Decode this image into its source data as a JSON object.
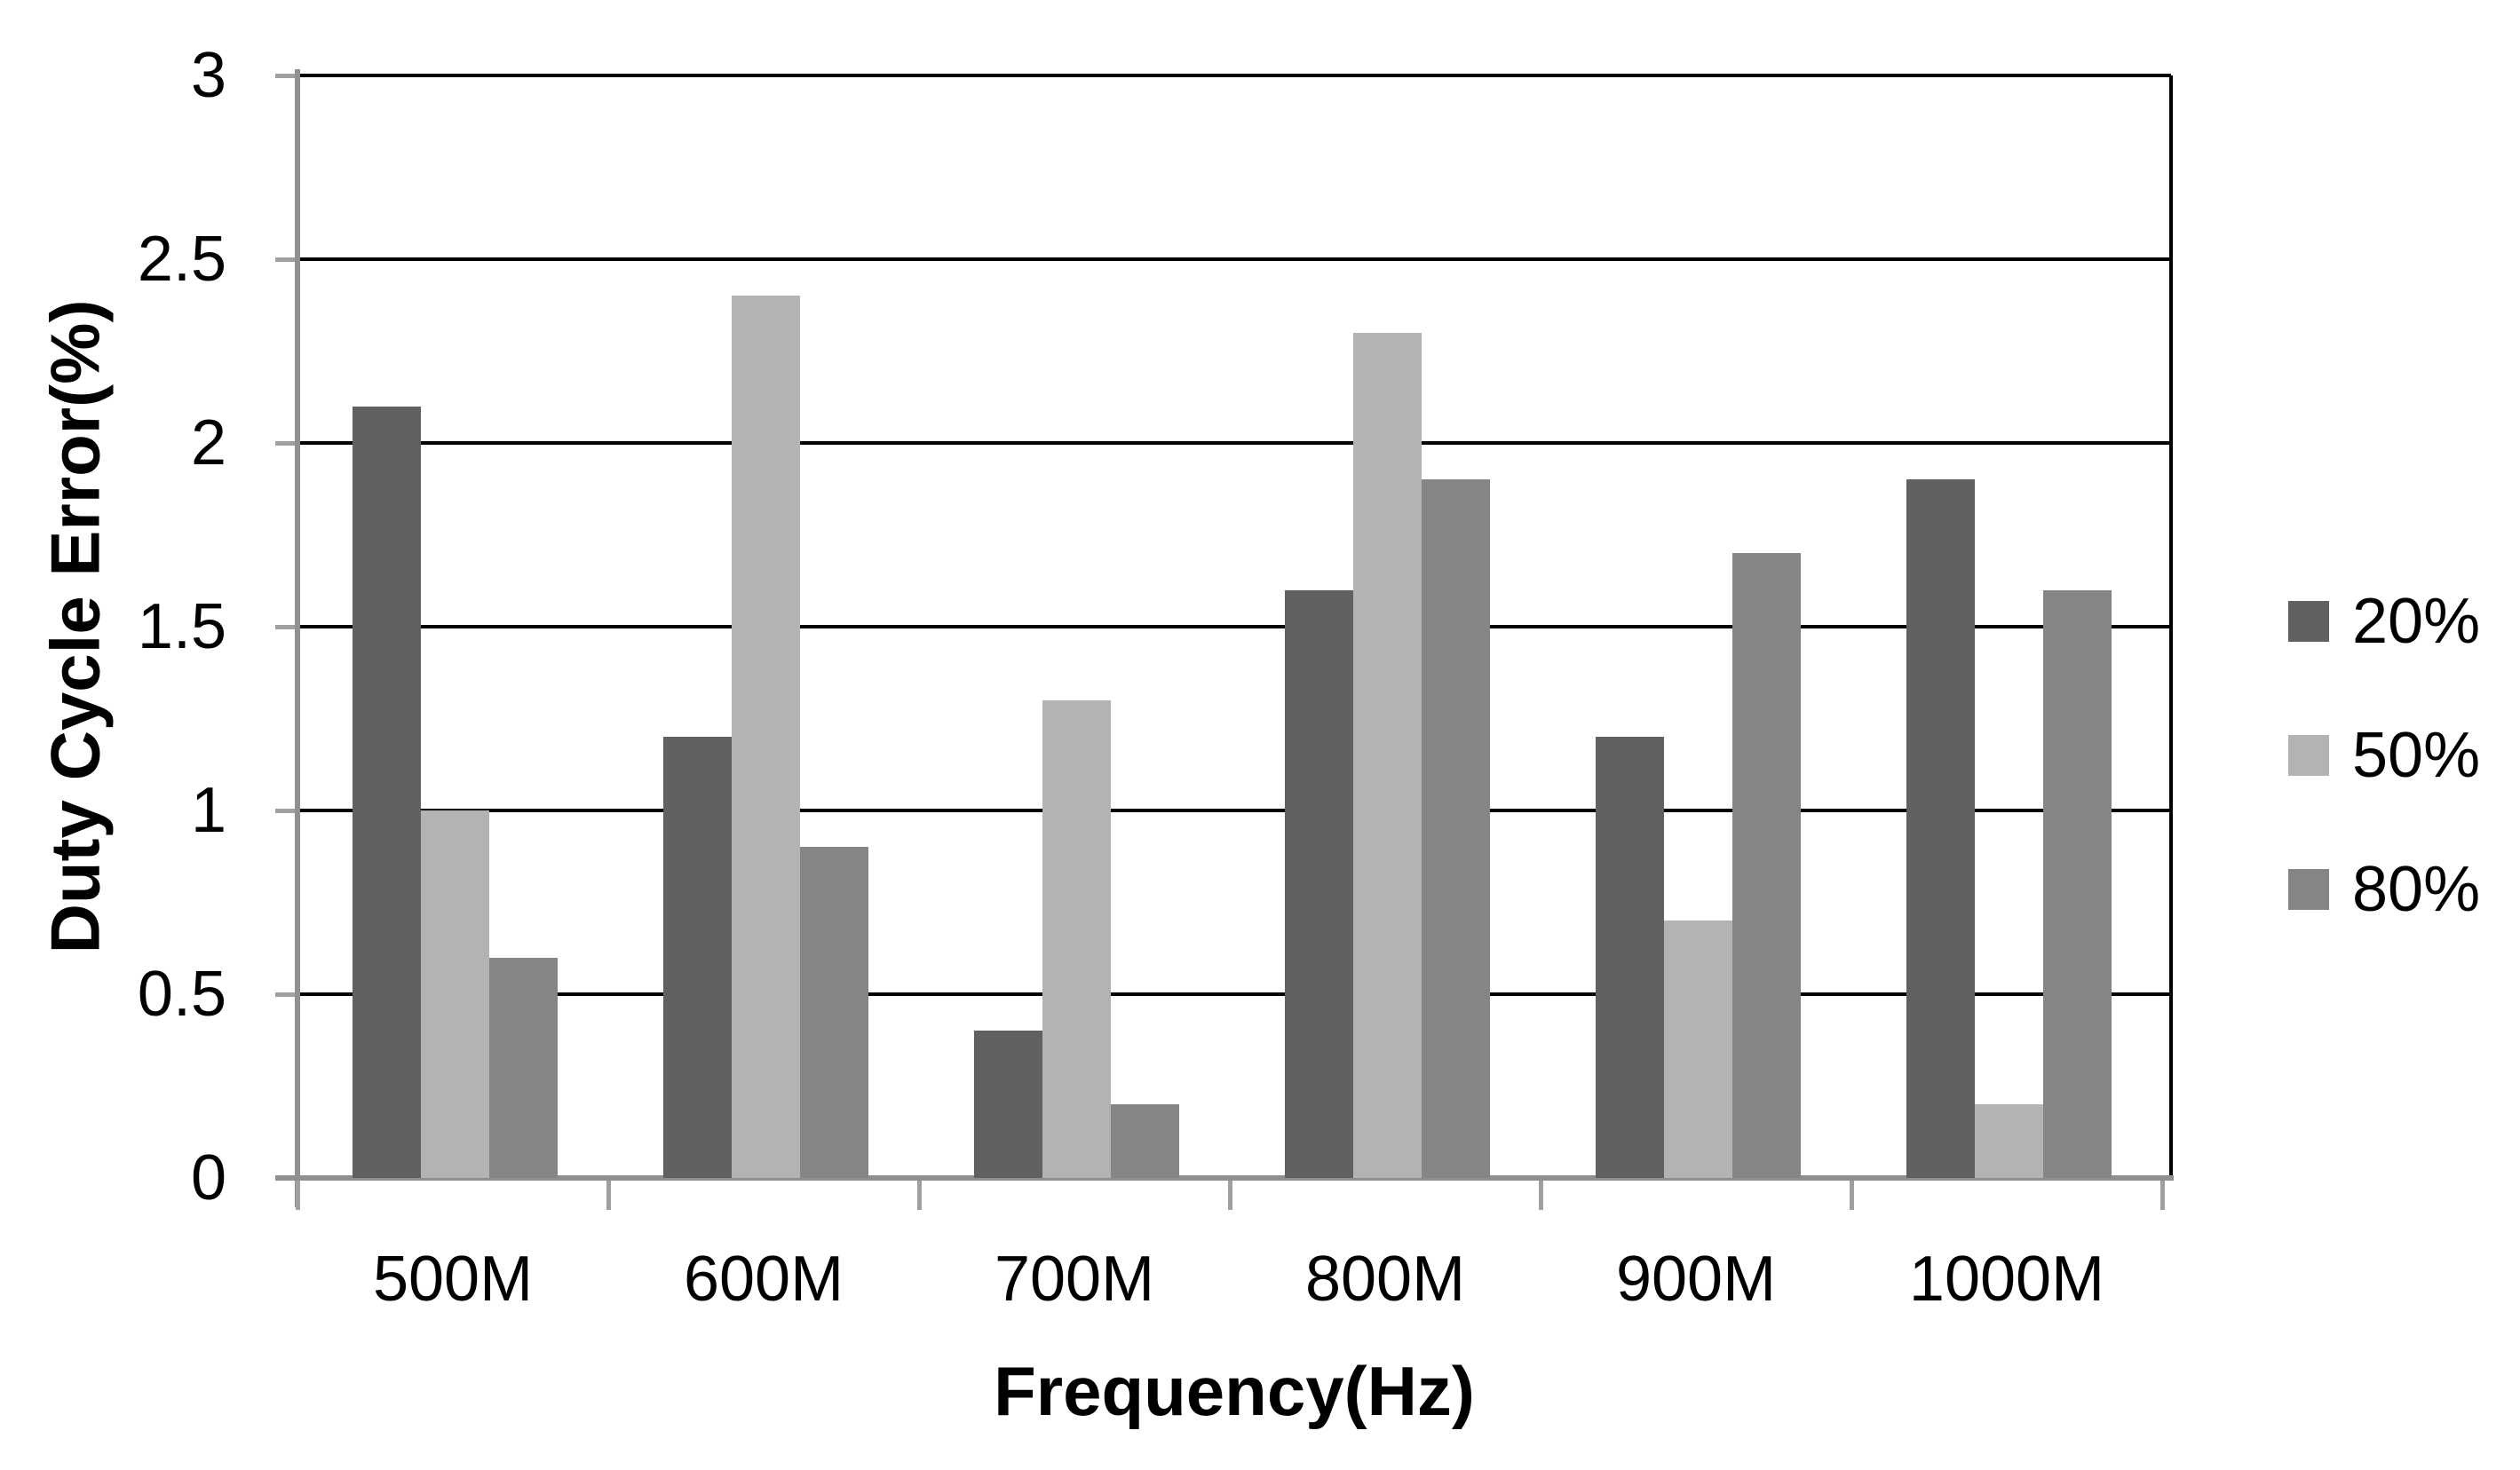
{
  "chart_data": {
    "type": "bar",
    "title": "",
    "xlabel": "Frequency(Hz)",
    "ylabel": "Duty Cycle Error(%)",
    "categories": [
      "500M",
      "600M",
      "700M",
      "800M",
      "900M",
      "1000M"
    ],
    "series": [
      {
        "name": "20%",
        "color": "#616161",
        "values": [
          2.1,
          1.2,
          0.4,
          1.6,
          1.2,
          1.9
        ]
      },
      {
        "name": "50%",
        "color": "#b3b3b3",
        "values": [
          1.0,
          2.4,
          1.3,
          2.3,
          0.7,
          0.2
        ]
      },
      {
        "name": "80%",
        "color": "#858585",
        "values": [
          0.6,
          0.9,
          0.2,
          1.9,
          1.7,
          1.6
        ]
      }
    ],
    "ylim": [
      0,
      3
    ],
    "yticks": [
      {
        "v": 0,
        "label": "0"
      },
      {
        "v": 0.5,
        "label": "0.5"
      },
      {
        "v": 1,
        "label": "1"
      },
      {
        "v": 1.5,
        "label": "1.5"
      },
      {
        "v": 2,
        "label": "2"
      },
      {
        "v": 2.5,
        "label": "2.5"
      },
      {
        "v": 3,
        "label": "3"
      }
    ],
    "grid": "horizontal",
    "legend_position": "right",
    "colors": {
      "gridline": "#000000",
      "axis_line": "#8f8f8f",
      "tick_mark": "#9f9f9f",
      "background": "#ffffff",
      "text": "#000000"
    }
  }
}
